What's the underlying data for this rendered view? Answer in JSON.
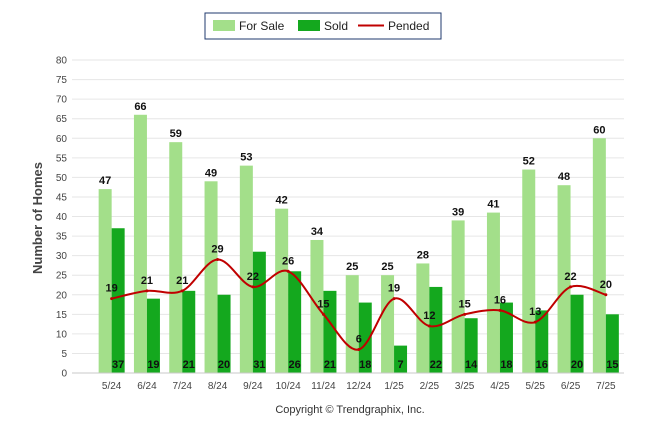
{
  "chart_data": {
    "type": "bar",
    "categories": [
      "5/24",
      "6/24",
      "7/24",
      "8/24",
      "9/24",
      "10/24",
      "11/24",
      "12/24",
      "1/25",
      "2/25",
      "3/25",
      "4/25",
      "5/25",
      "6/25",
      "7/25"
    ],
    "series": [
      {
        "name": "For Sale",
        "type": "bar",
        "values": [
          47,
          66,
          59,
          49,
          53,
          42,
          34,
          25,
          25,
          28,
          39,
          41,
          52,
          48,
          60
        ]
      },
      {
        "name": "Sold",
        "type": "bar",
        "values": [
          37,
          19,
          21,
          20,
          31,
          26,
          21,
          18,
          7,
          22,
          14,
          18,
          16,
          20,
          15
        ]
      },
      {
        "name": "Pended",
        "type": "line",
        "values": [
          19,
          21,
          21,
          29,
          22,
          26,
          15,
          6,
          19,
          12,
          15,
          16,
          13,
          22,
          20
        ]
      }
    ],
    "ylabel": "Number of Homes",
    "xlabel": "",
    "ylim": [
      0,
      80
    ],
    "yticks": [
      0,
      5,
      10,
      15,
      20,
      25,
      30,
      35,
      40,
      45,
      50,
      55,
      60,
      65,
      70,
      75,
      80
    ],
    "grid": true,
    "legend": "top-center",
    "colors": {
      "for_sale": "#a3df8a",
      "sold": "#14a81e",
      "pended": "#c00000"
    }
  },
  "copyright": "Copyright © Trendgraphix, Inc."
}
